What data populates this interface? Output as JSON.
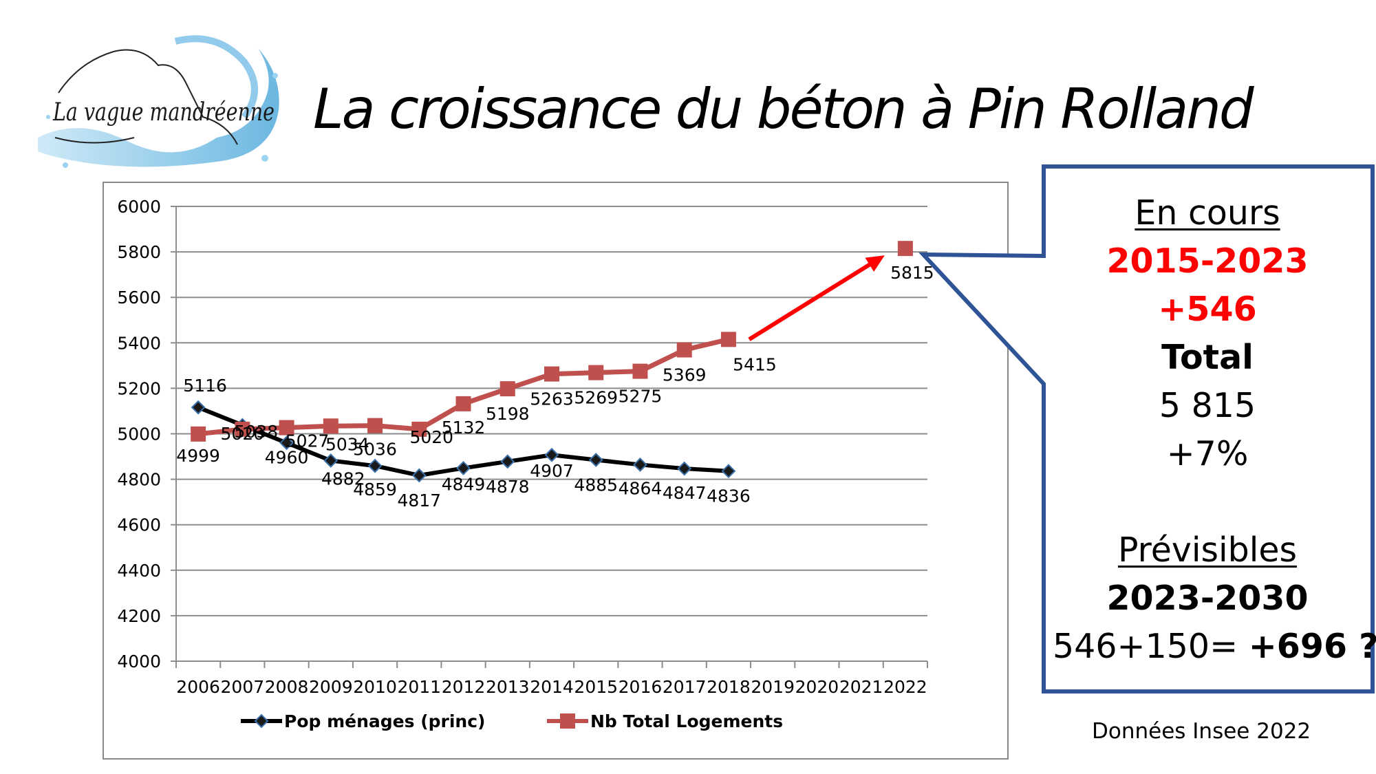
{
  "header": {
    "logo_text": "La vague mandréenne",
    "title": "La croissance du béton à Pin Rolland"
  },
  "chart_data": {
    "type": "line",
    "categories": [
      "2006",
      "2007",
      "2008",
      "2009",
      "2010",
      "2011",
      "2012",
      "2013",
      "2014",
      "2015",
      "2016",
      "2017",
      "2018",
      "2019",
      "2020",
      "2021",
      "2022"
    ],
    "ylim": [
      4000,
      6000
    ],
    "yticks": [
      "4000",
      "4200",
      "4400",
      "4600",
      "4800",
      "5000",
      "5200",
      "5400",
      "5600",
      "5800",
      "6000"
    ],
    "grid": true,
    "legend_position": "bottom",
    "series": [
      {
        "name": "Pop ménages (princ)",
        "color": "#000000",
        "marker": "diamond",
        "values": [
          5116,
          5038,
          4960,
          4882,
          4859,
          4817,
          4849,
          4878,
          4907,
          4885,
          4864,
          4847,
          4836,
          null,
          null,
          null,
          null
        ]
      },
      {
        "name": "Nb Total Logements",
        "color": "#c0504d",
        "marker": "square",
        "values": [
          4999,
          5020,
          5027,
          5034,
          5036,
          5020,
          5132,
          5198,
          5263,
          5269,
          5275,
          5369,
          5415,
          null,
          null,
          null,
          5815
        ]
      }
    ],
    "annotation": {
      "type": "arrow",
      "color": "#ff0000",
      "from": "2018",
      "to": "2022"
    }
  },
  "callout": {
    "line1": "En cours",
    "line2": "2015-2023",
    "line3": "+546",
    "line4": "Total",
    "line5": "5 815",
    "line6": "+7%",
    "line7": "Prévisibles",
    "line8": "2023-2030",
    "line9_prefix": "546+150= ",
    "line9_bold": "+696 ?",
    "border_color": "#2f5496"
  },
  "footer": {
    "source": "Données Insee 2022"
  }
}
